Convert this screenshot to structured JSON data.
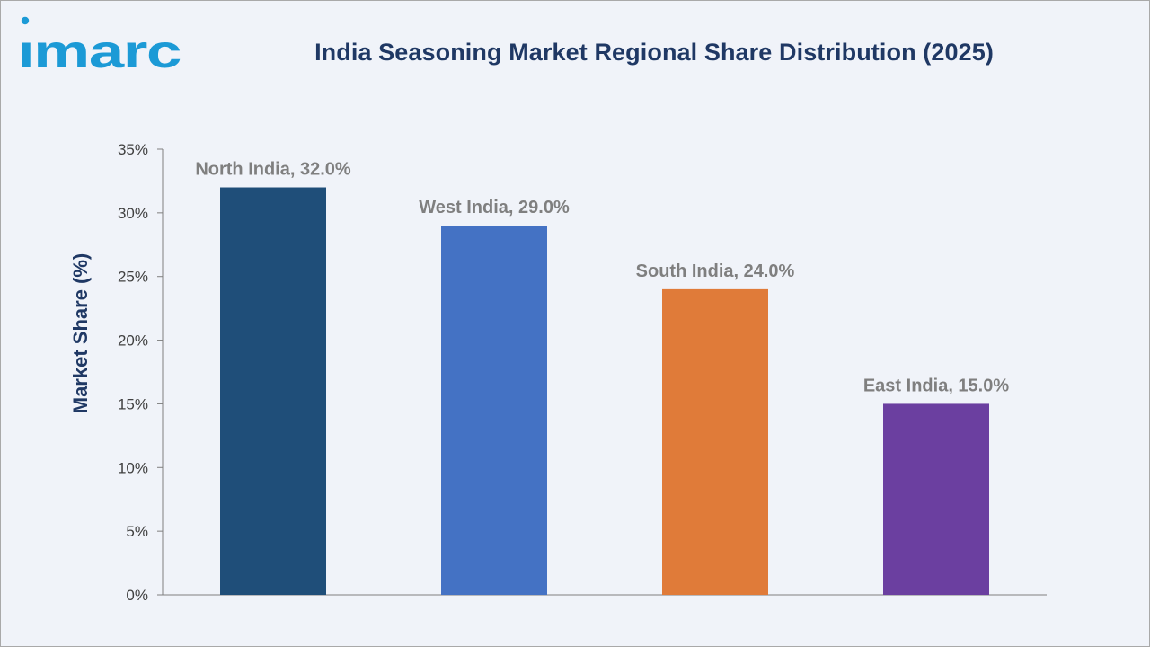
{
  "brand": {
    "logo_text": "imarc",
    "logo_color": "#1c9ad6"
  },
  "chart_data": {
    "type": "bar",
    "title": "India Seasoning Market Regional Share Distribution (2025)",
    "xlabel": "",
    "ylabel": "Market Share (%)",
    "categories": [
      "North India",
      "West India",
      "South India",
      "East India"
    ],
    "values": [
      32.0,
      29.0,
      24.0,
      15.0
    ],
    "data_labels": [
      "North India, 32.0%",
      "West India, 29.0%",
      "South India, 24.0%",
      "East India, 15.0%"
    ],
    "colors": [
      "#1f4e79",
      "#4472c4",
      "#e07b39",
      "#6b3fa0"
    ],
    "ylim": [
      0,
      35
    ],
    "y_ticks": [
      0,
      5,
      10,
      15,
      20,
      25,
      30,
      35
    ],
    "y_tick_labels": [
      "0%",
      "5%",
      "10%",
      "15%",
      "20%",
      "25%",
      "30%",
      "35%"
    ],
    "grid": false,
    "legend": "none"
  }
}
